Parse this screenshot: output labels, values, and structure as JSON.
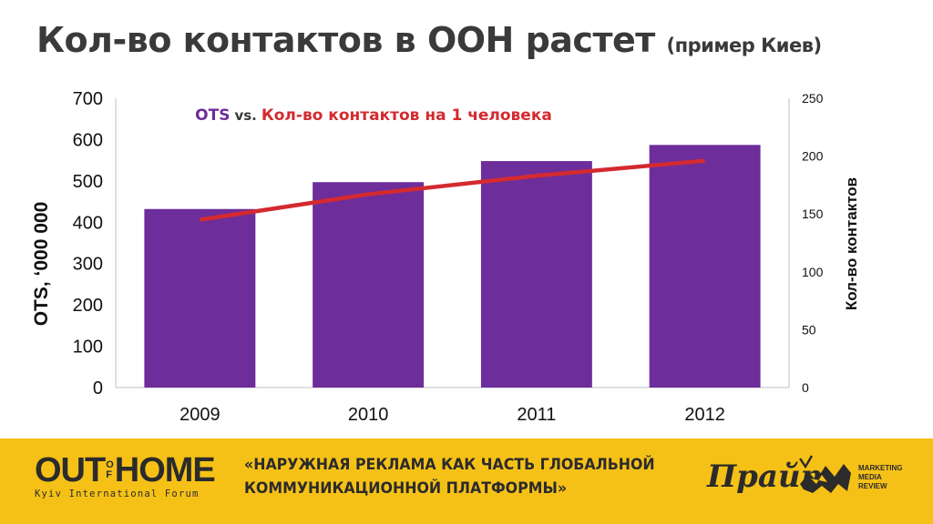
{
  "slide": {
    "title": "Кол-во контактов в ООН растет",
    "title_suffix": "(пример Киев)"
  },
  "chart_data": {
    "type": "bar",
    "title_part1": "OTS",
    "title_part2": "vs.",
    "title_part3": "Кол-во контактов на 1 человека",
    "categories": [
      "2009",
      "2010",
      "2011",
      "2012"
    ],
    "series": [
      {
        "name": "OTS",
        "type": "bar",
        "axis": "left",
        "values": [
          432,
          497,
          548,
          587
        ],
        "color": "#6d2d9b"
      },
      {
        "name": "Кол-во контактов на 1 человека",
        "type": "line",
        "axis": "right",
        "values": [
          145,
          167,
          183,
          196
        ],
        "color": "#d42a2f"
      }
    ],
    "ylabel": "OTS, ‘000 000",
    "y2label": "Кол-во контактов",
    "ylim": [
      0,
      700
    ],
    "yticks": [
      "0",
      "100",
      "200",
      "300",
      "400",
      "500",
      "600",
      "700"
    ],
    "y2lim": [
      0,
      250
    ],
    "y2ticks": [
      "0",
      "50",
      "100",
      "150",
      "200",
      "250"
    ],
    "grid": false
  },
  "footer": {
    "logo_word_left": "OUT",
    "logo_of_top": "O",
    "logo_of_bottom": "F",
    "logo_word_right": "HOME",
    "logo_subtitle": "Kyiv International Forum",
    "slogan_line1": "«НАРУЖНАЯ РЕКЛАМА КАК ЧАСТЬ ГЛОБАЛЬНОЙ",
    "slogan_line2": "КОММУНИКАЦИОННОЙ ПЛАТФОРМЫ»",
    "prime_logo": "Прайт",
    "mmr_line1": "MARKETING",
    "mmr_line2": "MEDIA",
    "mmr_line3": "REVIEW",
    "colors": {
      "background": "#f6c117",
      "text": "#2b2b2b"
    }
  }
}
